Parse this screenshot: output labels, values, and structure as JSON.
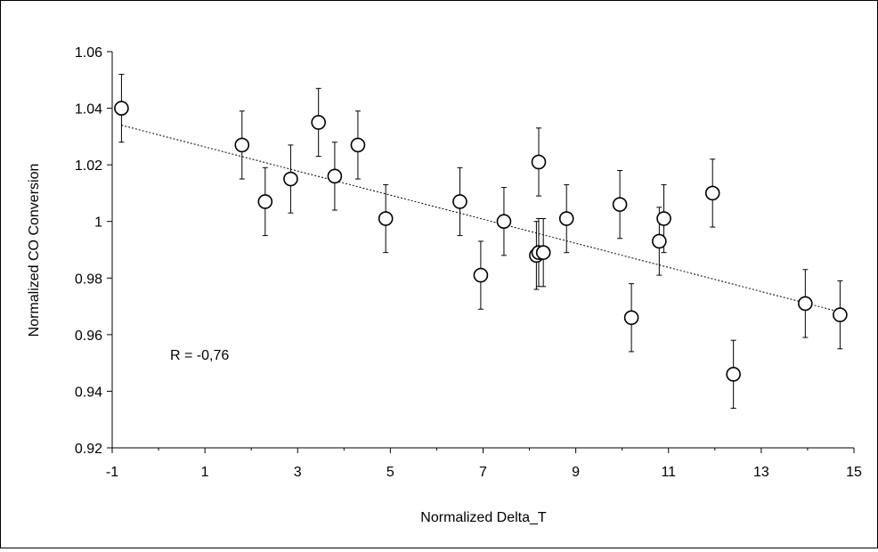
{
  "chart_data": {
    "type": "scatter",
    "title": "",
    "xlabel": "Normalized Delta_T",
    "ylabel": "Normalized CO Conversion",
    "xlim": [
      -1,
      15
    ],
    "ylim": [
      0.92,
      1.06
    ],
    "x_ticks": [
      "-1",
      "1",
      "3",
      "5",
      "7",
      "9",
      "11",
      "13",
      "15"
    ],
    "y_ticks": [
      "0.92",
      "0.94",
      "0.96",
      "0.98",
      "1",
      "1.02",
      "1.04",
      "1.06"
    ],
    "grid": false,
    "legend": "none",
    "annotation": "R = -0,76",
    "trendline": {
      "x": [
        -0.8,
        14.7
      ],
      "y": [
        1.034,
        0.968
      ]
    },
    "error_bar": 0.012,
    "points": [
      {
        "x": -0.8,
        "y": 1.04
      },
      {
        "x": 1.8,
        "y": 1.027
      },
      {
        "x": 2.3,
        "y": 1.007
      },
      {
        "x": 2.85,
        "y": 1.015
      },
      {
        "x": 3.45,
        "y": 1.035
      },
      {
        "x": 3.8,
        "y": 1.016
      },
      {
        "x": 4.3,
        "y": 1.027
      },
      {
        "x": 4.9,
        "y": 1.001
      },
      {
        "x": 6.5,
        "y": 1.007
      },
      {
        "x": 6.95,
        "y": 0.981
      },
      {
        "x": 7.45,
        "y": 1.0
      },
      {
        "x": 8.15,
        "y": 0.988
      },
      {
        "x": 8.2,
        "y": 1.021
      },
      {
        "x": 8.2,
        "y": 0.989
      },
      {
        "x": 8.3,
        "y": 0.989
      },
      {
        "x": 8.8,
        "y": 1.001
      },
      {
        "x": 9.95,
        "y": 1.006
      },
      {
        "x": 10.2,
        "y": 0.966
      },
      {
        "x": 10.8,
        "y": 0.993
      },
      {
        "x": 10.9,
        "y": 1.001
      },
      {
        "x": 11.95,
        "y": 1.01
      },
      {
        "x": 12.4,
        "y": 0.946
      },
      {
        "x": 13.95,
        "y": 0.971
      },
      {
        "x": 14.7,
        "y": 0.967
      }
    ]
  }
}
